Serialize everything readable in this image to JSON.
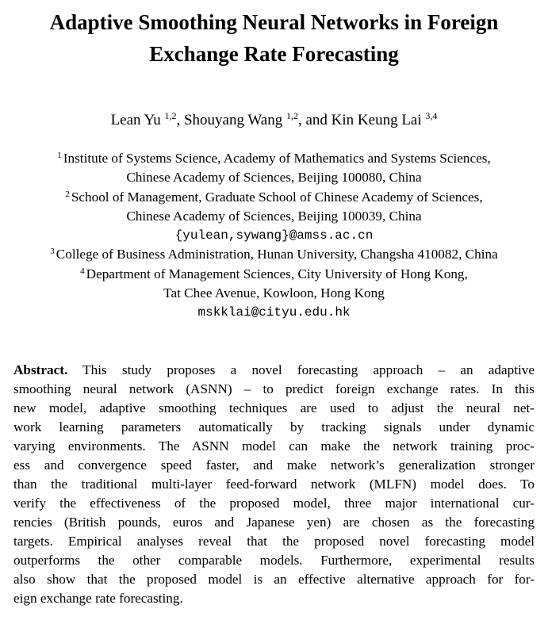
{
  "paper": {
    "title_lines": [
      "Adaptive Smoothing Neural Networks in Foreign",
      "Exchange Rate Forecasting"
    ],
    "authors": [
      {
        "name": "Lean Yu",
        "sup": "1,2",
        "sep": ", "
      },
      {
        "name": "Shouyang Wang",
        "sup": "1,2",
        "sep": ", and "
      },
      {
        "name": "Kin Keung Lai",
        "sup": "3,4",
        "sep": ""
      }
    ],
    "affiliations": {
      "a1_sup": "1",
      "a1_line1": "Institute of Systems Science, Academy of Mathematics and Systems Sciences,",
      "a1_line2": "Chinese Academy of Sciences, Beijing 100080, China",
      "a2_sup": "2",
      "a2_line1": "School of Management, Graduate School of Chinese Academy of Sciences,",
      "a2_line2": "Chinese Academy of Sciences, Beijing 100039, China",
      "email_1": "{yulean,sywang}@amss.ac.cn",
      "a3_sup": "3",
      "a3_line1": "College of Business Administration, Hunan University, Changsha 410082, China",
      "a4_sup": "4",
      "a4_line1": "Department of Management Sciences, City University of Hong Kong,",
      "a4_line2": "Tat Chee Avenue, Kowloon, Hong Kong",
      "email_2": "mskklai@cityu.edu.hk"
    },
    "abstract": {
      "label": "Abstract.",
      "lines": [
        "This study proposes a novel forecasting approach – an adaptive",
        "smoothing neural network (ASNN) – to predict foreign exchange rates. In this",
        "new model, adaptive smoothing techniques are used to adjust the neural net-",
        "work learning parameters automatically by tracking signals under dynamic",
        "varying environments. The ASNN model can make the network training proc-",
        "ess and convergence speed faster, and make network’s generalization stronger",
        "than the traditional multi-layer feed-forward network (MLFN) model does. To",
        "verify the effectiveness of the proposed model, three major international cur-",
        "rencies (British pounds, euros and Japanese yen) are chosen as the forecasting",
        "targets. Empirical analyses reveal that the proposed novel forecasting model",
        "outperforms the other comparable models. Furthermore, experimental results",
        "also show that the proposed model is an effective alternative approach for for-",
        "eign exchange rate forecasting."
      ]
    }
  }
}
